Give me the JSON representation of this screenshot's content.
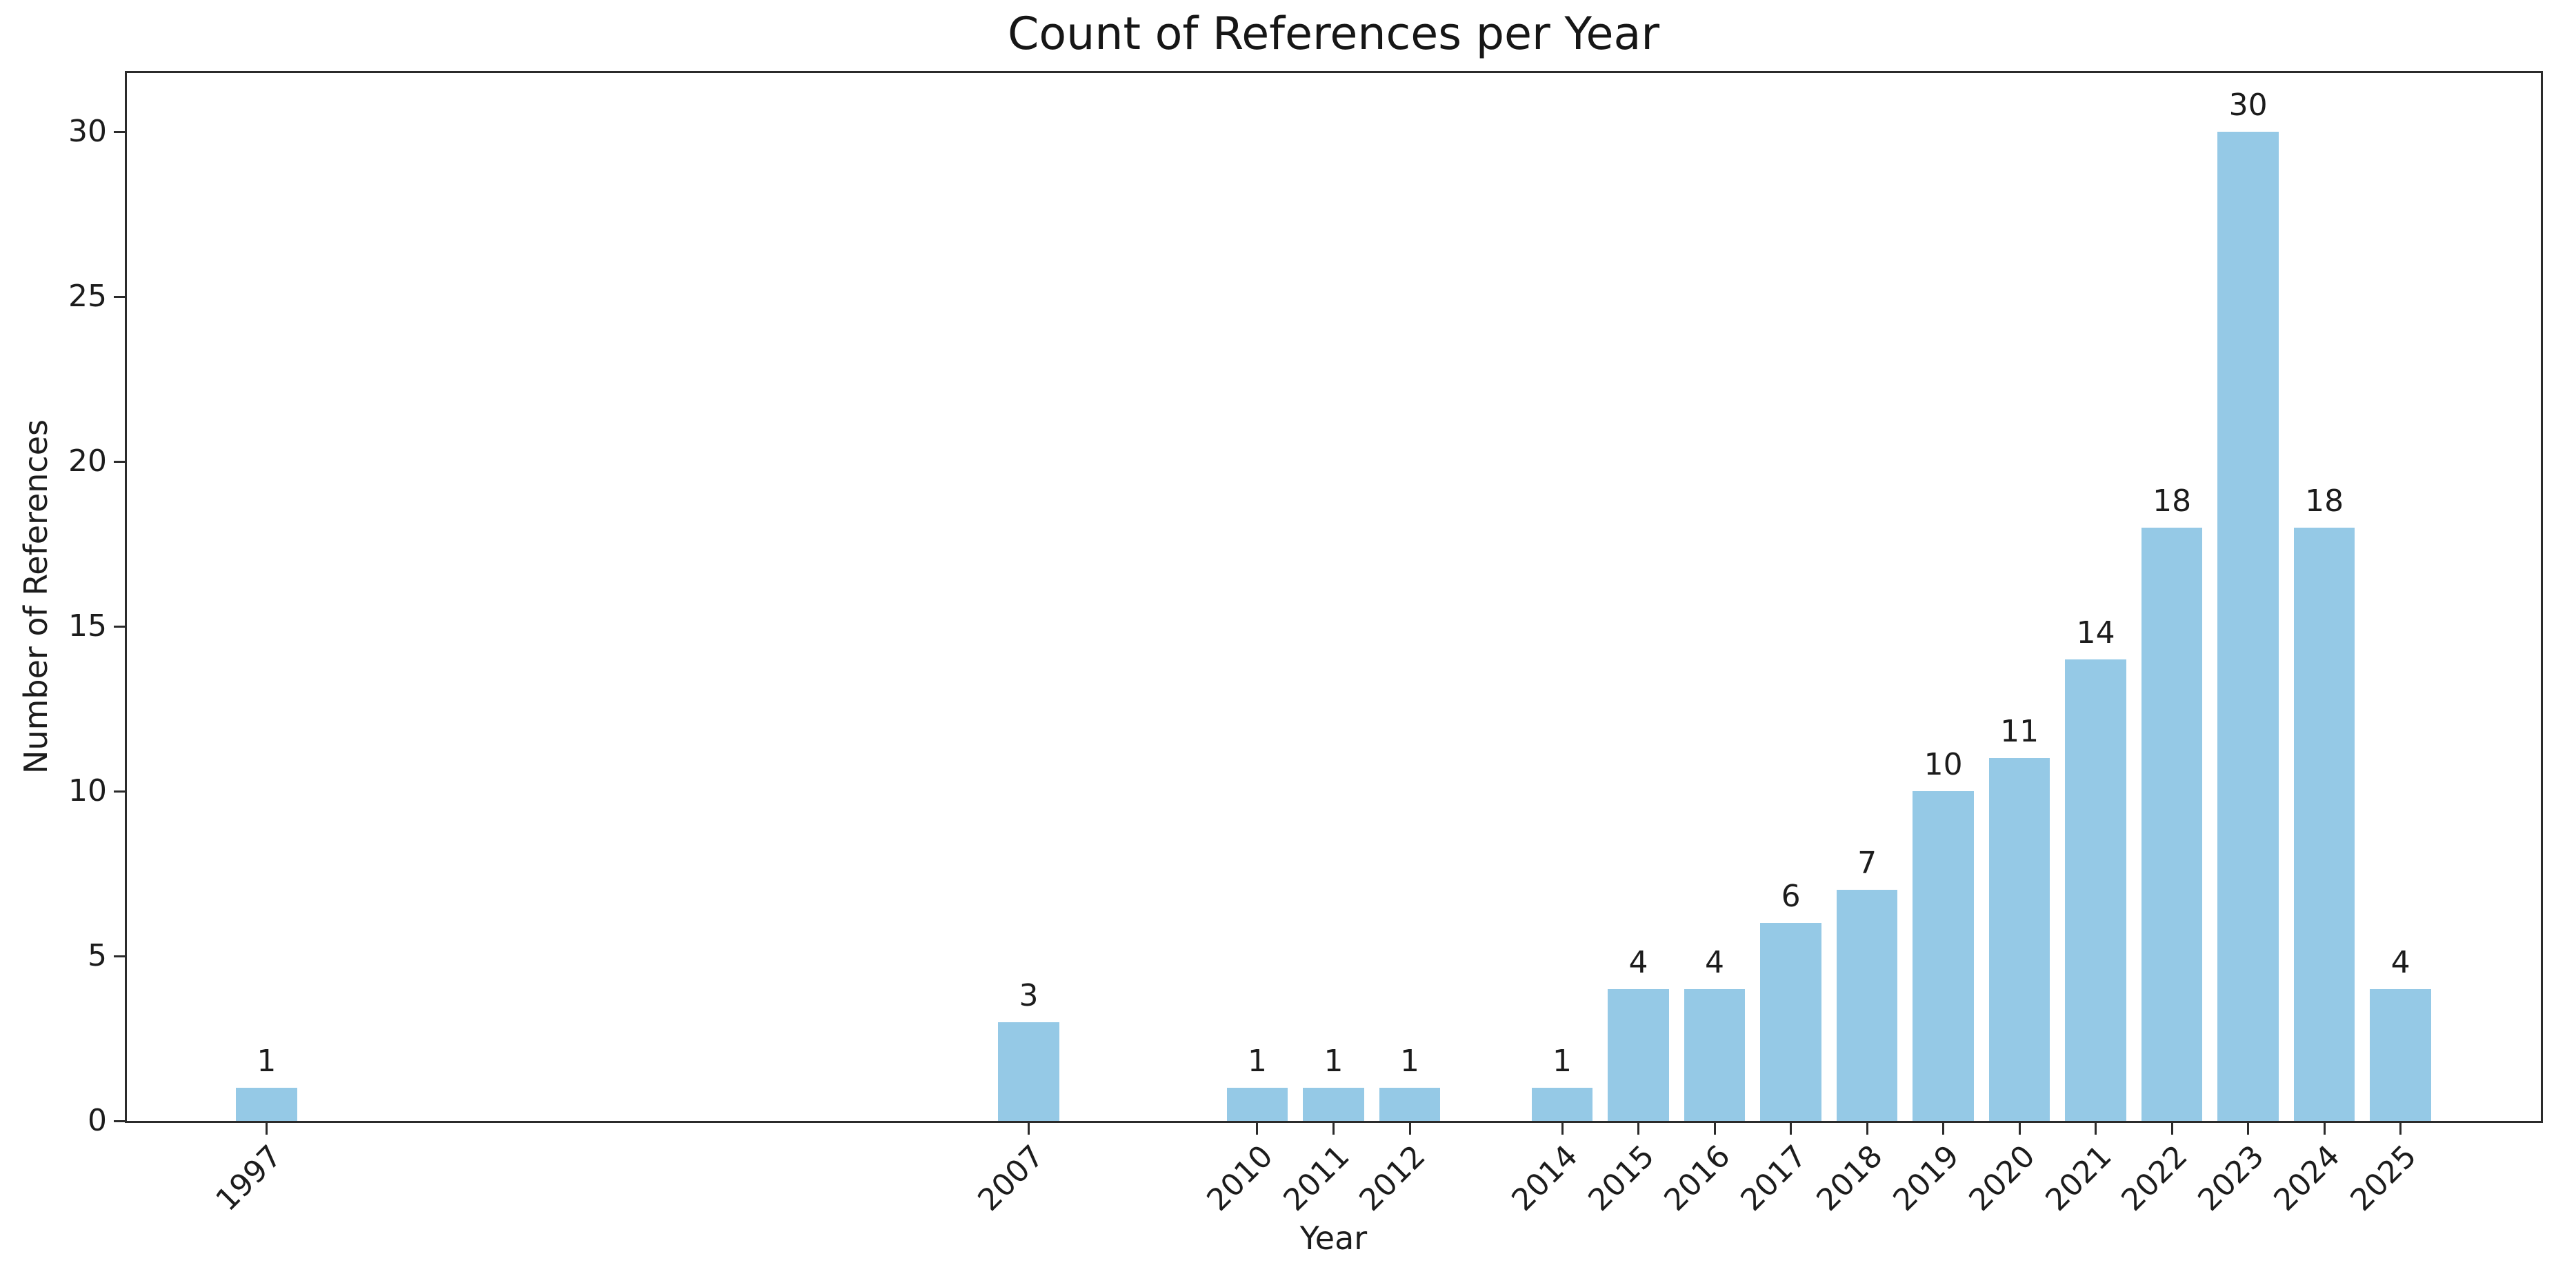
{
  "figure": {
    "background_color": "#ffffff"
  },
  "chart_data": {
    "type": "bar",
    "title": "Count of References per Year",
    "xlabel": "Year",
    "ylabel": "Number of References",
    "categories": [
      1997,
      2007,
      2010,
      2011,
      2012,
      2014,
      2015,
      2016,
      2017,
      2018,
      2019,
      2020,
      2021,
      2022,
      2023,
      2024,
      2025
    ],
    "values": [
      1,
      3,
      1,
      1,
      1,
      1,
      4,
      4,
      6,
      7,
      10,
      11,
      14,
      18,
      30,
      18,
      4
    ],
    "bar_labels": [
      "1",
      "3",
      "1",
      "1",
      "1",
      "1",
      "4",
      "4",
      "6",
      "7",
      "10",
      "11",
      "14",
      "18",
      "30",
      "18",
      "4"
    ],
    "x_tick_labels": [
      "1997",
      "2007",
      "2010",
      "2011",
      "2012",
      "2014",
      "2015",
      "2016",
      "2017",
      "2018",
      "2019",
      "2020",
      "2021",
      "2022",
      "2023",
      "2024",
      "2025"
    ],
    "y_ticks": [
      0,
      5,
      10,
      15,
      20,
      25,
      30
    ],
    "xlim": [
      1995.16,
      2026.84
    ],
    "ylim": [
      0,
      31.8
    ],
    "bar_width_years": 0.8,
    "tick_rotation_deg": 45,
    "grid": false,
    "legend": false,
    "bar_color": "#95c9e6",
    "axis_color": "#2b2b2b",
    "text_color": "#1c1c1c"
  }
}
